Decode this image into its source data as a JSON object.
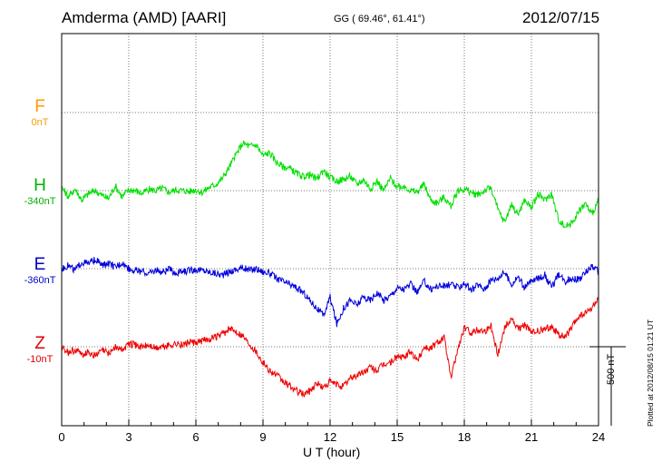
{
  "header": {
    "title": "Amderma (AMD)  [AARI]",
    "coords": "GG ( 69.46°,  61.41°)",
    "date": "2012/07/15"
  },
  "components": [
    {
      "symbol": "F",
      "baseline": "0nT",
      "color": "#ff9900"
    },
    {
      "symbol": "H",
      "baseline": "-340nT",
      "color": "#00b000"
    },
    {
      "symbol": "E",
      "baseline": "-360nT",
      "color": "#0000cc"
    },
    {
      "symbol": "Z",
      "baseline": "-10nT",
      "color": "#dd0000"
    }
  ],
  "scale_label": "500 nT",
  "footer_note": "Plotted at 2012/08/15 01:21 UT",
  "chart_data": {
    "type": "line",
    "xlabel": "U T (hour)",
    "xlim": [
      0,
      24
    ],
    "x_ticks": [
      0,
      3,
      6,
      9,
      12,
      15,
      18,
      21,
      24
    ],
    "grid": true,
    "scale_nT": 500,
    "series": [
      {
        "name": "H",
        "color": "#00e000",
        "baseline_nT": -340,
        "x": [
          0,
          0.3,
          0.6,
          0.9,
          1.2,
          1.5,
          1.8,
          2.1,
          2.4,
          2.7,
          3.0,
          3.3,
          3.6,
          3.9,
          4.2,
          4.5,
          4.8,
          5.1,
          5.4,
          5.7,
          6.0,
          6.3,
          6.6,
          6.9,
          7.2,
          7.5,
          7.8,
          8.1,
          8.4,
          8.7,
          9.0,
          9.3,
          9.6,
          9.9,
          10.2,
          10.5,
          10.8,
          11.1,
          11.4,
          11.7,
          12.0,
          12.3,
          12.6,
          12.9,
          13.2,
          13.5,
          13.8,
          14.1,
          14.4,
          14.7,
          15.0,
          15.3,
          15.6,
          15.9,
          16.2,
          16.5,
          16.8,
          17.1,
          17.4,
          17.7,
          18.0,
          18.3,
          18.6,
          18.9,
          19.2,
          19.5,
          19.8,
          20.1,
          20.4,
          20.7,
          21.0,
          21.3,
          21.6,
          21.9,
          22.2,
          22.5,
          22.8,
          23.1,
          23.4,
          23.7,
          24.0
        ],
        "y": [
          20,
          -40,
          10,
          -60,
          -20,
          0,
          -30,
          -50,
          30,
          -40,
          5,
          0,
          -20,
          10,
          0,
          15,
          -10,
          5,
          0,
          -5,
          5,
          -10,
          20,
          40,
          80,
          150,
          230,
          300,
          280,
          290,
          220,
          240,
          180,
          150,
          140,
          110,
          90,
          100,
          70,
          130,
          80,
          60,
          70,
          90,
          40,
          70,
          10,
          60,
          0,
          80,
          20,
          30,
          0,
          -10,
          40,
          -60,
          -80,
          -40,
          -100,
          0,
          10,
          -10,
          -30,
          0,
          20,
          -120,
          -200,
          -90,
          -150,
          -60,
          -110,
          -20,
          -60,
          -20,
          -180,
          -230,
          -200,
          -140,
          -80,
          -150,
          -60
        ]
      },
      {
        "name": "E",
        "color": "#0000dd",
        "baseline_nT": -360,
        "x": [
          0,
          0.3,
          0.6,
          0.9,
          1.2,
          1.5,
          1.8,
          2.1,
          2.4,
          2.7,
          3.0,
          3.3,
          3.6,
          3.9,
          4.2,
          4.5,
          4.8,
          5.1,
          5.4,
          5.7,
          6.0,
          6.3,
          6.6,
          6.9,
          7.2,
          7.5,
          7.8,
          8.1,
          8.4,
          8.7,
          9.0,
          9.3,
          9.6,
          9.9,
          10.2,
          10.5,
          10.8,
          11.1,
          11.4,
          11.7,
          12.0,
          12.3,
          12.6,
          12.9,
          13.2,
          13.5,
          13.8,
          14.1,
          14.4,
          14.7,
          15.0,
          15.3,
          15.6,
          15.9,
          16.2,
          16.5,
          16.8,
          17.1,
          17.4,
          17.7,
          18.0,
          18.3,
          18.6,
          18.9,
          19.2,
          19.5,
          19.8,
          20.1,
          20.4,
          20.7,
          21.0,
          21.3,
          21.6,
          21.9,
          22.2,
          22.5,
          22.8,
          23.1,
          23.4,
          23.7,
          24.0
        ],
        "y": [
          0,
          20,
          -10,
          40,
          30,
          60,
          20,
          30,
          10,
          40,
          0,
          -10,
          -20,
          -30,
          -10,
          -20,
          -5,
          -30,
          -20,
          -10,
          -5,
          -10,
          -20,
          -30,
          -40,
          -20,
          -5,
          5,
          -10,
          0,
          -20,
          -30,
          -60,
          -80,
          -100,
          -120,
          -150,
          -200,
          -250,
          -300,
          -180,
          -350,
          -250,
          -200,
          -230,
          -180,
          -200,
          -150,
          -200,
          -170,
          -120,
          -130,
          -100,
          -150,
          -80,
          -130,
          -110,
          -110,
          -100,
          -120,
          -90,
          -140,
          -100,
          -130,
          -70,
          -60,
          -20,
          -100,
          -50,
          -120,
          -80,
          -60,
          -40,
          -120,
          -40,
          -80,
          -60,
          -70,
          -30,
          20,
          -20
        ]
      },
      {
        "name": "Z",
        "color": "#ee0000",
        "baseline_nT": -10,
        "x": [
          0,
          0.3,
          0.6,
          0.9,
          1.2,
          1.5,
          1.8,
          2.1,
          2.4,
          2.7,
          3.0,
          3.3,
          3.6,
          3.9,
          4.2,
          4.5,
          4.8,
          5.1,
          5.4,
          5.7,
          6.0,
          6.3,
          6.6,
          6.9,
          7.2,
          7.5,
          7.8,
          8.1,
          8.4,
          8.7,
          9.0,
          9.3,
          9.6,
          9.9,
          10.2,
          10.5,
          10.8,
          11.1,
          11.4,
          11.7,
          12.0,
          12.3,
          12.6,
          12.9,
          13.2,
          13.5,
          13.8,
          14.1,
          14.4,
          14.7,
          15.0,
          15.3,
          15.6,
          15.9,
          16.2,
          16.5,
          16.8,
          17.1,
          17.4,
          17.7,
          18.0,
          18.3,
          18.6,
          18.9,
          19.2,
          19.5,
          19.8,
          20.1,
          20.4,
          20.7,
          21.0,
          21.3,
          21.6,
          21.9,
          22.2,
          22.5,
          22.8,
          23.1,
          23.4,
          23.7,
          24.0
        ],
        "y": [
          0,
          -40,
          -20,
          -50,
          -30,
          -60,
          -20,
          -40,
          0,
          -20,
          20,
          10,
          0,
          10,
          -10,
          0,
          10,
          20,
          10,
          30,
          20,
          40,
          50,
          60,
          80,
          110,
          100,
          70,
          20,
          -30,
          -100,
          -150,
          -180,
          -220,
          -250,
          -280,
          -300,
          -280,
          -230,
          -260,
          -220,
          -240,
          -250,
          -200,
          -180,
          -160,
          -130,
          -150,
          -110,
          -100,
          -60,
          -70,
          -30,
          -90,
          0,
          -10,
          30,
          60,
          -200,
          -20,
          120,
          90,
          110,
          100,
          130,
          -50,
          120,
          180,
          110,
          140,
          90,
          100,
          110,
          130,
          80,
          60,
          120,
          190,
          210,
          240,
          310
        ]
      }
    ]
  }
}
